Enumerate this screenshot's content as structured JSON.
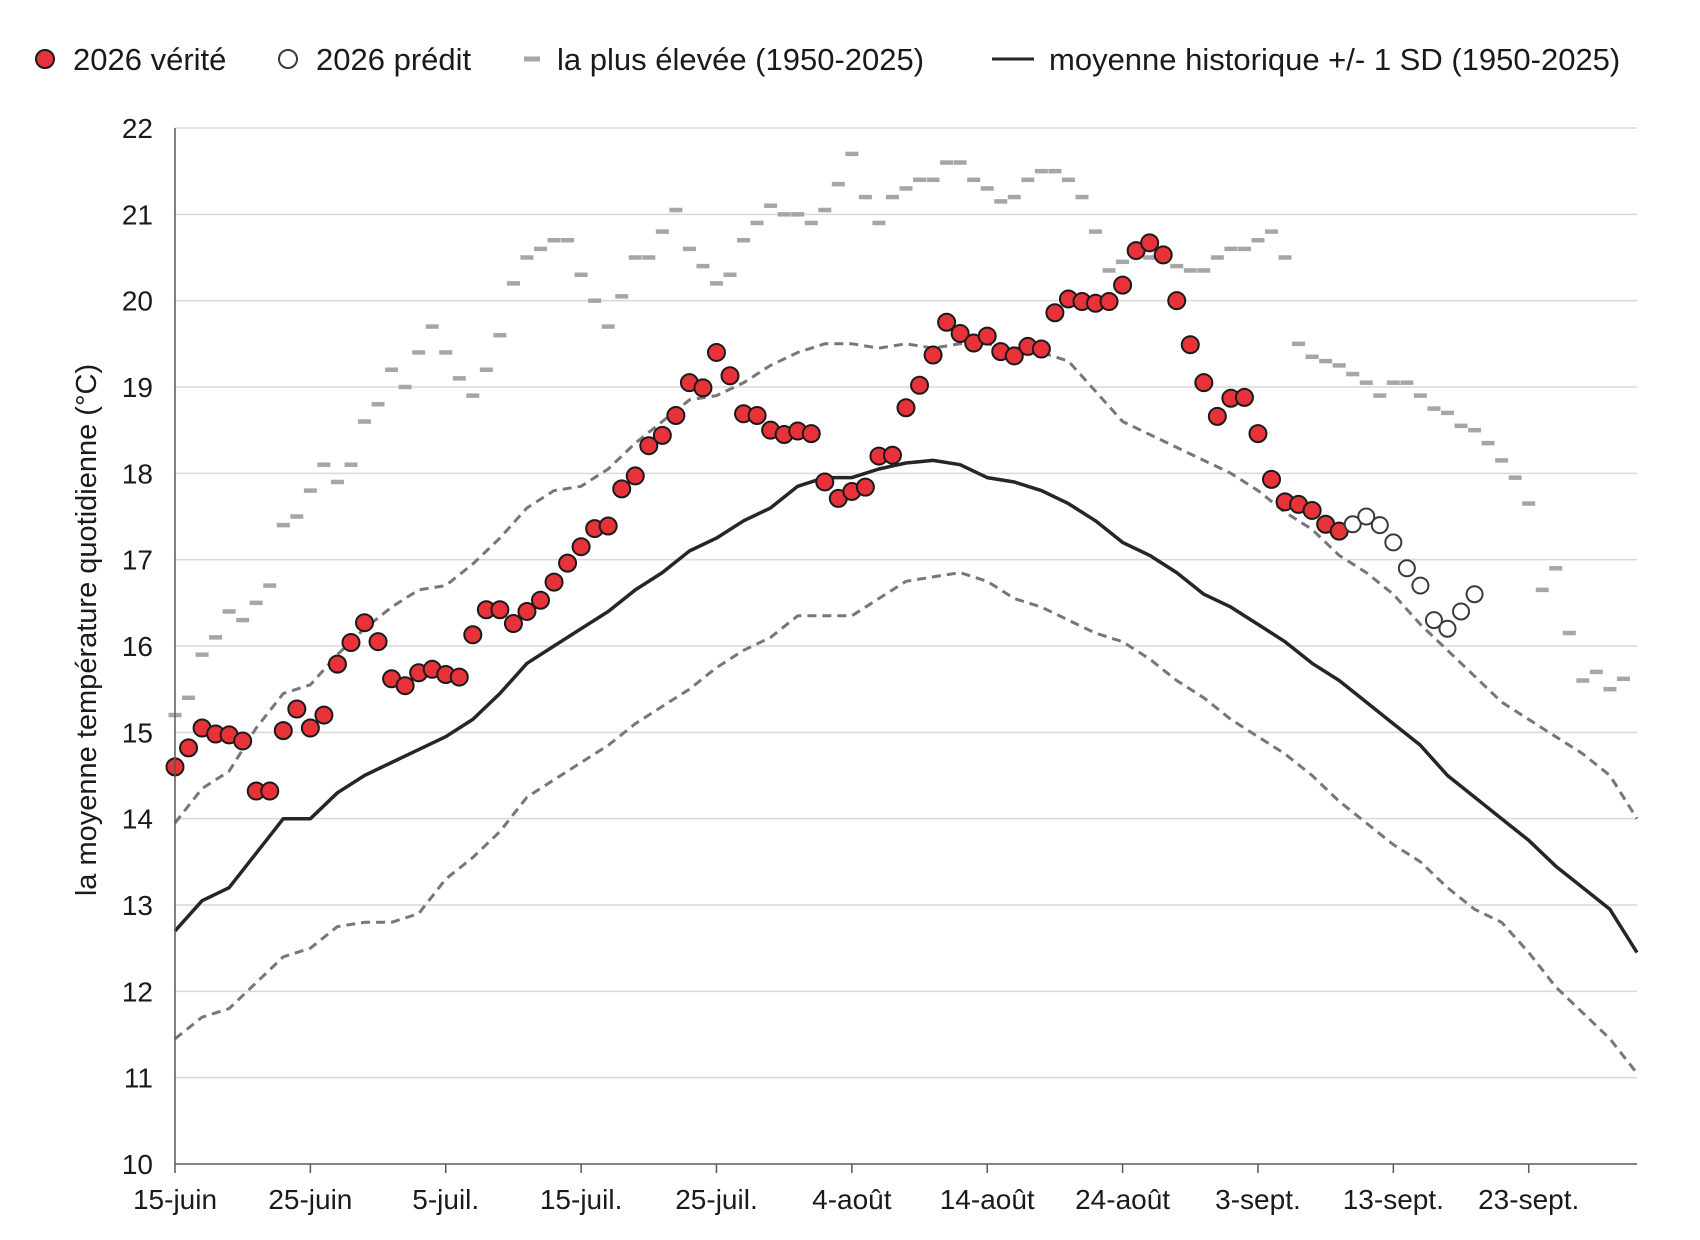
{
  "chart_data": {
    "type": "line",
    "title": "",
    "xlabel": "",
    "ylabel": "la moyenne température quotidienne (°C)",
    "ylim": [
      10,
      22
    ],
    "y_ticks": [
      10,
      11,
      12,
      13,
      14,
      15,
      16,
      17,
      18,
      19,
      20,
      21,
      22
    ],
    "x_range_days": [
      0,
      108
    ],
    "x_ticks": [
      {
        "day": 0,
        "label": "15-juin"
      },
      {
        "day": 10,
        "label": "25-juin"
      },
      {
        "day": 20,
        "label": "5-juil."
      },
      {
        "day": 30,
        "label": "15-juil."
      },
      {
        "day": 40,
        "label": "25-juil."
      },
      {
        "day": 50,
        "label": "4-août"
      },
      {
        "day": 60,
        "label": "14-août"
      },
      {
        "day": 70,
        "label": "24-août"
      },
      {
        "day": 80,
        "label": "3-sept."
      },
      {
        "day": 90,
        "label": "13-sept."
      },
      {
        "day": 100,
        "label": "23-sept."
      }
    ],
    "grid": "horizontal",
    "legend_position": "top",
    "legend": [
      {
        "key": "truth",
        "label": "2026 vérité"
      },
      {
        "key": "predicted",
        "label": "2026 prédit"
      },
      {
        "key": "highest",
        "label": "la plus élevée (1950-2025)"
      },
      {
        "key": "mean",
        "label": "moyenne historique +/- 1 SD (1950-2025)"
      }
    ],
    "colors": {
      "truth_fill": "#e8323a",
      "truth_stroke": "#1a1a1a",
      "predicted_fill": "#ffffff",
      "predicted_stroke": "#3a3a3a",
      "highest": "#a6a6a6",
      "mean": "#262626",
      "sd": "#777777",
      "grid": "#d9d9d9"
    },
    "series": [
      {
        "name": "2026 vérité",
        "key": "truth",
        "x": [
          0,
          1,
          2,
          3,
          4,
          5,
          6,
          7,
          8,
          9,
          10,
          11,
          12,
          13,
          14,
          15,
          16,
          17,
          18,
          19,
          20,
          21,
          22,
          23,
          24,
          25,
          26,
          27,
          28,
          29,
          30,
          31,
          32,
          33,
          34,
          35,
          36,
          37,
          38,
          39,
          40,
          41,
          42,
          43,
          44,
          45,
          46,
          47,
          48,
          49,
          50,
          51,
          52,
          53,
          54,
          55,
          56,
          57,
          58,
          59,
          60,
          61,
          62,
          63,
          64,
          65,
          66,
          67,
          68,
          69,
          70,
          71,
          72,
          73,
          74,
          75,
          76,
          77,
          78,
          79,
          80,
          81,
          82,
          83,
          84,
          85,
          86
        ],
        "y": [
          14.6,
          14.82,
          15.05,
          14.98,
          14.97,
          14.9,
          14.32,
          14.32,
          15.02,
          15.27,
          15.05,
          15.2,
          15.79,
          16.04,
          16.27,
          16.05,
          15.62,
          15.54,
          15.69,
          15.73,
          15.67,
          15.64,
          16.13,
          16.42,
          16.42,
          16.26,
          16.4,
          16.53,
          16.74,
          16.96,
          17.15,
          17.36,
          17.39,
          17.82,
          17.97,
          18.32,
          18.44,
          18.67,
          19.05,
          18.99,
          19.4,
          19.13,
          18.69,
          18.67,
          18.5,
          18.45,
          18.49,
          18.46,
          17.9,
          17.71,
          17.79,
          17.84,
          18.2,
          18.21,
          18.76,
          19.02,
          19.37,
          19.75,
          19.62,
          19.51,
          19.59,
          19.41,
          19.36,
          19.47,
          19.44,
          19.86,
          20.02,
          19.99,
          19.97,
          19.99,
          20.18,
          20.58,
          20.67,
          20.53,
          20.0,
          19.49,
          19.05,
          18.66,
          18.87,
          18.88,
          18.46,
          17.93,
          17.67,
          17.64,
          17.57,
          17.41,
          17.33
        ]
      },
      {
        "name": "2026 prédit",
        "key": "predicted",
        "x": [
          87,
          88,
          89,
          90,
          91,
          92,
          93,
          94,
          95,
          96
        ],
        "y": [
          17.41,
          17.5,
          17.4,
          17.2,
          16.9,
          16.7,
          16.3,
          16.2,
          16.4,
          16.6
        ]
      },
      {
        "name": "la plus élevée (1950-2025)",
        "key": "highest",
        "x": [
          0,
          1,
          2,
          3,
          4,
          5,
          6,
          7,
          8,
          9,
          10,
          11,
          12,
          13,
          14,
          15,
          16,
          17,
          18,
          19,
          20,
          21,
          22,
          23,
          24,
          25,
          26,
          27,
          28,
          29,
          30,
          31,
          32,
          33,
          34,
          35,
          36,
          37,
          38,
          39,
          40,
          41,
          42,
          43,
          44,
          45,
          46,
          47,
          48,
          49,
          50,
          51,
          52,
          53,
          54,
          55,
          56,
          57,
          58,
          59,
          60,
          61,
          62,
          63,
          64,
          65,
          66,
          67,
          68,
          69,
          70,
          71,
          72,
          73,
          74,
          75,
          76,
          77,
          78,
          79,
          80,
          81,
          82,
          83,
          84,
          85,
          86,
          87,
          88,
          89,
          90,
          91,
          92,
          93,
          94,
          95,
          96,
          97,
          98,
          99,
          100,
          101,
          102,
          103,
          104,
          105,
          106,
          107
        ],
        "y": [
          15.2,
          15.4,
          15.9,
          16.1,
          16.4,
          16.3,
          16.5,
          16.7,
          17.4,
          17.5,
          17.8,
          18.1,
          17.9,
          18.1,
          18.6,
          18.8,
          19.2,
          19.0,
          19.4,
          19.7,
          19.4,
          19.1,
          18.9,
          19.2,
          19.6,
          20.2,
          20.5,
          20.6,
          20.7,
          20.7,
          20.3,
          20.0,
          19.7,
          20.05,
          20.5,
          20.5,
          20.8,
          21.05,
          20.6,
          20.4,
          20.2,
          20.3,
          20.7,
          20.9,
          21.1,
          21.0,
          21.0,
          20.9,
          21.05,
          21.35,
          21.7,
          21.2,
          20.9,
          21.2,
          21.3,
          21.4,
          21.4,
          21.6,
          21.6,
          21.4,
          21.3,
          21.15,
          21.2,
          21.4,
          21.5,
          21.5,
          21.4,
          21.2,
          20.8,
          20.35,
          20.45,
          20.6,
          20.5,
          20.5,
          20.4,
          20.35,
          20.35,
          20.5,
          20.6,
          20.6,
          20.7,
          20.8,
          20.5,
          19.5,
          19.35,
          19.3,
          19.25,
          19.15,
          19.05,
          18.9,
          19.05,
          19.05,
          18.9,
          18.75,
          18.7,
          18.55,
          18.5,
          18.35,
          18.15,
          17.95,
          17.65,
          16.65,
          16.9,
          16.15,
          15.6,
          15.7,
          15.5,
          15.62
        ]
      },
      {
        "name": "moyenne historique",
        "key": "mean",
        "x": [
          0,
          2,
          4,
          6,
          8,
          10,
          12,
          14,
          16,
          18,
          20,
          22,
          24,
          26,
          28,
          30,
          32,
          34,
          36,
          38,
          40,
          42,
          44,
          46,
          48,
          50,
          52,
          54,
          56,
          58,
          60,
          62,
          64,
          66,
          68,
          70,
          72,
          74,
          76,
          78,
          80,
          82,
          84,
          86,
          88,
          90,
          92,
          94,
          96,
          98,
          100,
          102,
          104,
          106,
          108
        ],
        "y": [
          12.7,
          13.05,
          13.2,
          13.6,
          14.0,
          14.0,
          14.3,
          14.5,
          14.65,
          14.8,
          14.95,
          15.15,
          15.45,
          15.8,
          16.0,
          16.2,
          16.4,
          16.65,
          16.85,
          17.1,
          17.25,
          17.45,
          17.6,
          17.85,
          17.95,
          17.95,
          18.05,
          18.12,
          18.15,
          18.1,
          17.95,
          17.9,
          17.8,
          17.65,
          17.45,
          17.2,
          17.05,
          16.85,
          16.6,
          16.45,
          16.25,
          16.05,
          15.8,
          15.6,
          15.35,
          15.1,
          14.85,
          14.5,
          14.25,
          14.0,
          13.75,
          13.45,
          13.2,
          12.95,
          12.45
        ]
      },
      {
        "name": "+1 SD",
        "key": "sd_upper",
        "x": [
          0,
          2,
          4,
          6,
          8,
          10,
          12,
          14,
          16,
          18,
          20,
          22,
          24,
          26,
          28,
          30,
          32,
          34,
          36,
          38,
          40,
          42,
          44,
          46,
          48,
          50,
          52,
          54,
          56,
          58,
          60,
          62,
          64,
          66,
          68,
          70,
          72,
          74,
          76,
          78,
          80,
          82,
          84,
          86,
          88,
          90,
          92,
          94,
          96,
          98,
          100,
          102,
          104,
          106,
          108
        ],
        "y": [
          13.95,
          14.35,
          14.55,
          15.05,
          15.45,
          15.55,
          15.9,
          16.2,
          16.45,
          16.65,
          16.7,
          16.95,
          17.25,
          17.6,
          17.8,
          17.85,
          18.05,
          18.35,
          18.6,
          18.85,
          18.9,
          19.05,
          19.25,
          19.4,
          19.5,
          19.5,
          19.45,
          19.5,
          19.45,
          19.5,
          19.5,
          19.45,
          19.4,
          19.3,
          18.95,
          18.6,
          18.45,
          18.3,
          18.15,
          18.0,
          17.8,
          17.55,
          17.35,
          17.05,
          16.85,
          16.6,
          16.25,
          15.95,
          15.65,
          15.35,
          15.15,
          14.95,
          14.75,
          14.5,
          14.0
        ]
      },
      {
        "name": "-1 SD",
        "key": "sd_lower",
        "x": [
          0,
          2,
          4,
          6,
          8,
          10,
          12,
          14,
          16,
          18,
          20,
          22,
          24,
          26,
          28,
          30,
          32,
          34,
          36,
          38,
          40,
          42,
          44,
          46,
          48,
          50,
          52,
          54,
          56,
          58,
          60,
          62,
          64,
          66,
          68,
          70,
          72,
          74,
          76,
          78,
          80,
          82,
          84,
          86,
          88,
          90,
          92,
          94,
          96,
          98,
          100,
          102,
          104,
          106,
          108
        ],
        "y": [
          11.45,
          11.7,
          11.8,
          12.1,
          12.4,
          12.5,
          12.75,
          12.8,
          12.8,
          12.9,
          13.3,
          13.55,
          13.85,
          14.25,
          14.45,
          14.65,
          14.85,
          15.1,
          15.3,
          15.5,
          15.75,
          15.95,
          16.1,
          16.35,
          16.35,
          16.35,
          16.55,
          16.75,
          16.8,
          16.85,
          16.75,
          16.55,
          16.45,
          16.3,
          16.15,
          16.05,
          15.85,
          15.6,
          15.4,
          15.15,
          14.95,
          14.75,
          14.5,
          14.2,
          13.95,
          13.7,
          13.5,
          13.2,
          12.95,
          12.8,
          12.45,
          12.05,
          11.75,
          11.45,
          11.05
        ]
      }
    ]
  }
}
